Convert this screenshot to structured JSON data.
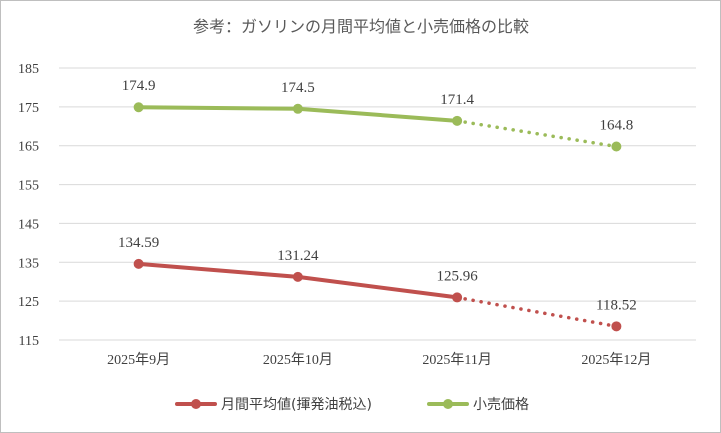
{
  "chart_data": {
    "type": "line",
    "title": "参考：ガソリンの月間平均値と小売価格の比較",
    "xlabel": "",
    "ylabel": "",
    "categories": [
      "2025年9月",
      "2025年10月",
      "2025年11月",
      "2025年12月"
    ],
    "ylim": [
      115,
      185
    ],
    "yticks": [
      115,
      125,
      135,
      145,
      155,
      165,
      175,
      185
    ],
    "grid": true,
    "legend_position": "bottom",
    "series": [
      {
        "name": "月間平均値(揮発油税込)",
        "values": [
          134.59,
          131.24,
          125.96,
          118.52
        ],
        "labels": [
          "134.59",
          "131.24",
          "125.96",
          "118.52"
        ],
        "color": "#c0504d",
        "dotted_last_segment": true
      },
      {
        "name": "小売価格",
        "values": [
          174.9,
          174.5,
          171.4,
          164.8
        ],
        "labels": [
          "174.9",
          "174.5",
          "171.4",
          "164.8"
        ],
        "color": "#9bbb59",
        "dotted_last_segment": true
      }
    ]
  }
}
